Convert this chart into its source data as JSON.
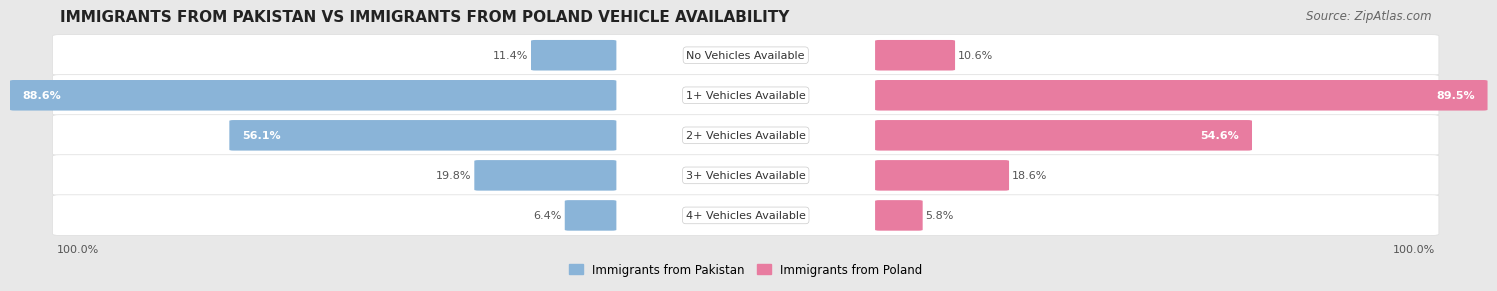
{
  "title": "IMMIGRANTS FROM PAKISTAN VS IMMIGRANTS FROM POLAND VEHICLE AVAILABILITY",
  "source": "Source: ZipAtlas.com",
  "categories": [
    "No Vehicles Available",
    "1+ Vehicles Available",
    "2+ Vehicles Available",
    "3+ Vehicles Available",
    "4+ Vehicles Available"
  ],
  "pakistan_values": [
    11.4,
    88.6,
    56.1,
    19.8,
    6.4
  ],
  "poland_values": [
    10.6,
    89.5,
    54.6,
    18.6,
    5.8
  ],
  "pakistan_color": "#8ab4d8",
  "poland_color": "#e87ca0",
  "pakistan_label": "Immigrants from Pakistan",
  "poland_label": "Immigrants from Poland",
  "bg_color": "#e8e8e8",
  "row_bg_color": "#ffffff",
  "row_alt_bg_color": "#f5f5f5",
  "axis_label_left": "100.0%",
  "axis_label_right": "100.0%",
  "title_fontsize": 11,
  "source_fontsize": 8.5,
  "bar_label_fontsize": 8,
  "category_fontsize": 8,
  "max_val": 100.0
}
